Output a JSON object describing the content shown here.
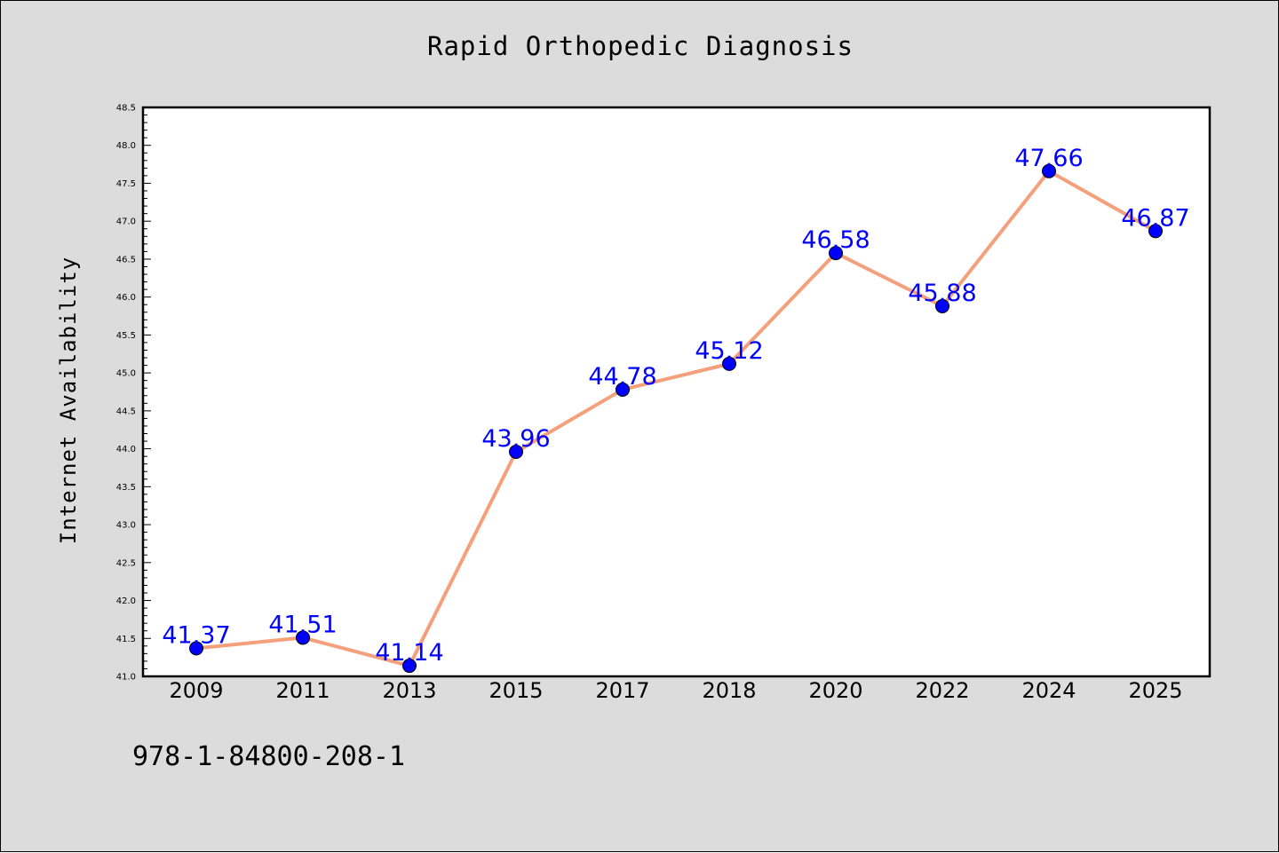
{
  "chart_data": {
    "type": "line",
    "title": "Rapid Orthopedic Diagnosis",
    "xlabel": "",
    "ylabel": "Internet Availability",
    "categories": [
      "2009",
      "2011",
      "2013",
      "2015",
      "2017",
      "2018",
      "2020",
      "2022",
      "2024",
      "2025"
    ],
    "series": [
      {
        "values": [
          41.37,
          41.51,
          41.14,
          43.96,
          44.78,
          45.12,
          46.58,
          45.88,
          47.66,
          46.87
        ]
      }
    ],
    "data_labels": [
      "41.37",
      "41.51",
      "41.14",
      "43.96",
      "44.78",
      "45.12",
      "46.58",
      "45.88",
      "47.66",
      "46.87"
    ],
    "ylim": [
      41.0,
      48.5
    ],
    "y_ticks": [
      "41.0",
      "41.5",
      "42.0",
      "42.5",
      "43.0",
      "43.5",
      "44.0",
      "44.5",
      "45.0",
      "45.5",
      "46.0",
      "46.5",
      "47.0",
      "47.5",
      "48.0",
      "48.5"
    ],
    "grid": false,
    "legend": "none",
    "colors": {
      "line": "#f4a07a",
      "marker": "#0000ff",
      "data_label": "#0000ff",
      "background": "#dcdcdc",
      "plot_background": "#ffffff"
    }
  },
  "footer": {
    "isbn": "978-1-84800-208-1"
  }
}
